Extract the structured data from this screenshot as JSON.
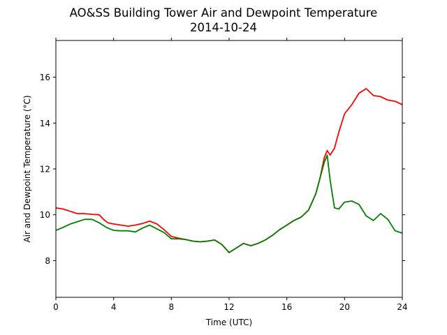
{
  "chart_data": {
    "type": "line",
    "title": "AO&SS Building Tower Air and Dewpoint Temperature",
    "subtitle": "2014-10-24",
    "xlabel": "Time (UTC)",
    "ylabel": "Air and Dewpoint Temperature (°C)",
    "xlim": [
      0,
      24
    ],
    "ylim": [
      6.4,
      17.6
    ],
    "xticks": [
      0,
      4,
      8,
      12,
      16,
      20,
      24
    ],
    "yticks": [
      8,
      10,
      12,
      14,
      16
    ],
    "grid": false,
    "legend": "none",
    "series": [
      {
        "color": "#ff0000",
        "x": [
          0,
          0.5,
          1,
          1.5,
          2,
          2.5,
          3,
          3.3,
          3.6,
          4,
          4.5,
          5,
          5.5,
          6,
          6.5,
          7,
          7.5,
          8,
          8.5,
          9,
          9.5,
          10,
          10.5,
          11,
          11.5,
          12,
          12.5,
          13,
          13.5,
          14,
          14.5,
          15,
          15.5,
          16,
          16.5,
          17,
          17.5,
          18,
          18.3,
          18.6,
          18.8,
          19,
          19.3,
          19.6,
          20,
          20.5,
          21,
          21.5,
          22,
          22.5,
          23,
          23.5,
          24
        ],
        "y": [
          10.3,
          10.25,
          10.15,
          10.05,
          10.05,
          10.02,
          10.0,
          9.8,
          9.65,
          9.6,
          9.55,
          9.5,
          9.55,
          9.62,
          9.72,
          9.6,
          9.35,
          9.05,
          8.98,
          8.92,
          8.85,
          8.82,
          8.85,
          8.9,
          8.7,
          8.35,
          8.55,
          8.75,
          8.65,
          8.75,
          8.9,
          9.1,
          9.35,
          9.55,
          9.75,
          9.9,
          10.2,
          10.9,
          11.6,
          12.5,
          12.8,
          12.6,
          12.9,
          13.6,
          14.4,
          14.8,
          15.3,
          15.5,
          15.2,
          15.15,
          15.0,
          14.95,
          14.8
        ]
      },
      {
        "color": "#008000",
        "x": [
          0,
          0.5,
          1,
          1.5,
          2,
          2.5,
          3,
          3.5,
          4,
          4.5,
          5,
          5.5,
          6,
          6.5,
          7,
          7.5,
          8,
          8.5,
          9,
          9.5,
          10,
          10.5,
          11,
          11.5,
          12,
          12.5,
          13,
          13.5,
          14,
          14.5,
          15,
          15.5,
          16,
          16.5,
          17,
          17.5,
          18,
          18.3,
          18.6,
          18.8,
          19,
          19.3,
          19.6,
          20,
          20.5,
          21,
          21.5,
          22,
          22.5,
          23,
          23.5,
          24
        ],
        "y": [
          9.32,
          9.45,
          9.6,
          9.7,
          9.8,
          9.8,
          9.65,
          9.45,
          9.32,
          9.3,
          9.3,
          9.25,
          9.42,
          9.55,
          9.38,
          9.22,
          8.95,
          8.95,
          8.92,
          8.85,
          8.82,
          8.85,
          8.9,
          8.7,
          8.35,
          8.55,
          8.75,
          8.65,
          8.75,
          8.9,
          9.1,
          9.35,
          9.55,
          9.75,
          9.9,
          10.2,
          10.9,
          11.6,
          12.3,
          12.6,
          11.5,
          10.3,
          10.25,
          10.55,
          10.6,
          10.45,
          9.95,
          9.75,
          10.05,
          9.8,
          9.3,
          9.2
        ]
      }
    ]
  }
}
